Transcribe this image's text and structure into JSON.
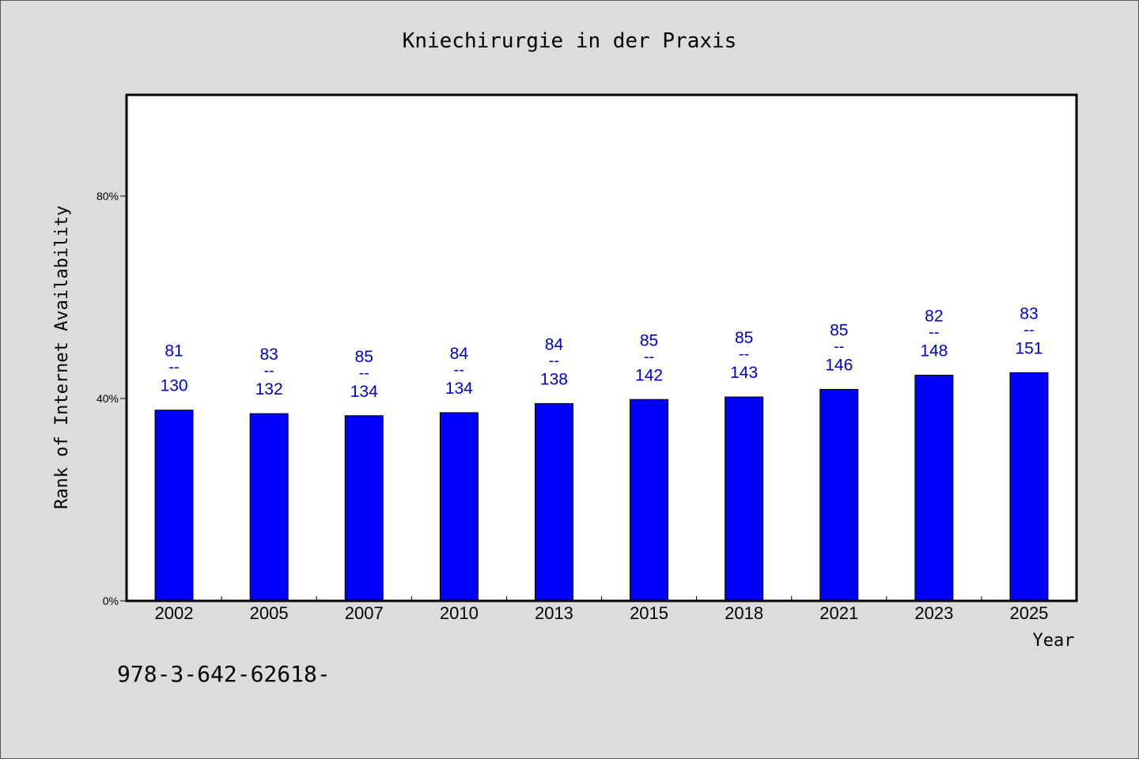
{
  "chart_data": {
    "type": "bar",
    "title": "Kniechirurgie in der Praxis",
    "xlabel": "Year",
    "ylabel": "Rank of Internet Availability",
    "categories": [
      "2002",
      "2005",
      "2007",
      "2010",
      "2013",
      "2015",
      "2018",
      "2021",
      "2023",
      "2025"
    ],
    "values": [
      37.7,
      37.0,
      36.6,
      37.2,
      39.0,
      39.8,
      40.3,
      41.8,
      44.6,
      45.1
    ],
    "data_labels": [
      {
        "top": "81",
        "sep": "--",
        "bottom": "130"
      },
      {
        "top": "83",
        "sep": "--",
        "bottom": "132"
      },
      {
        "top": "85",
        "sep": "--",
        "bottom": "134"
      },
      {
        "top": "84",
        "sep": "--",
        "bottom": "134"
      },
      {
        "top": "84",
        "sep": "--",
        "bottom": "138"
      },
      {
        "top": "85",
        "sep": "--",
        "bottom": "142"
      },
      {
        "top": "85",
        "sep": "--",
        "bottom": "143"
      },
      {
        "top": "85",
        "sep": "--",
        "bottom": "146"
      },
      {
        "top": "82",
        "sep": "--",
        "bottom": "148"
      },
      {
        "top": "83",
        "sep": "--",
        "bottom": "151"
      }
    ],
    "yticks": [
      0,
      40,
      80
    ],
    "ytick_labels": [
      "0%",
      "40%",
      "80%"
    ],
    "ylim": [
      0,
      100
    ],
    "grid": false,
    "bar_color": "#0000ff",
    "label_color": "#0000cc",
    "footnote": "978-3-642-62618-"
  }
}
